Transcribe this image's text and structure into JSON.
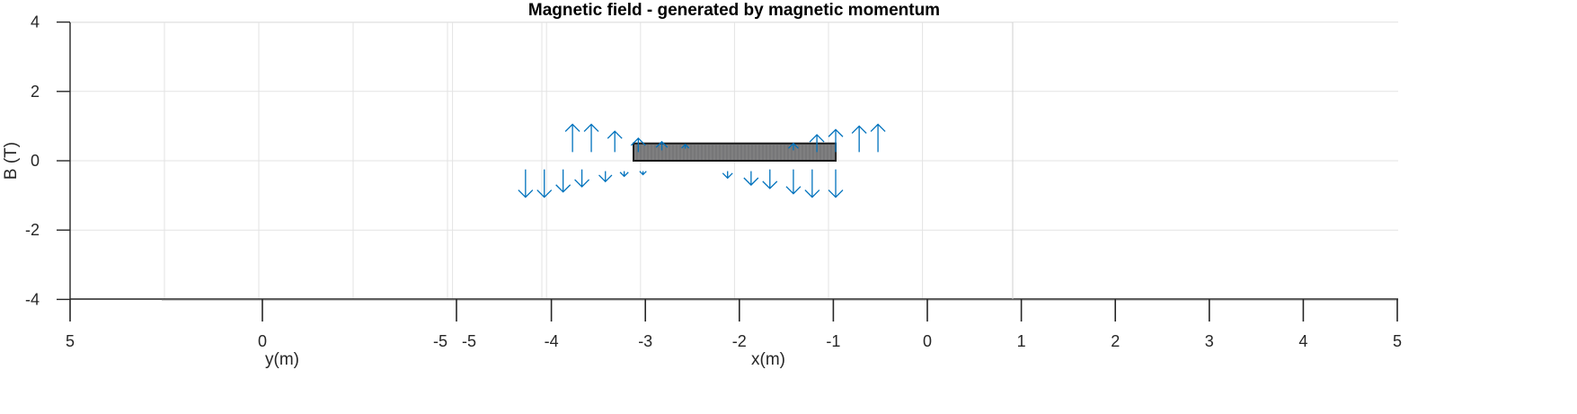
{
  "chart_data": {
    "type": "quiver",
    "title": "Magnetic field - generated by magnetic momentum",
    "ylabel": "B (T)",
    "y_labels": [
      "4",
      "2",
      "0",
      "-2",
      "-4"
    ],
    "ylim": [
      -4,
      4
    ],
    "xlabel": "x(m)",
    "xlim": [
      -5,
      5
    ],
    "x_labels": [
      "-4",
      "-3",
      "-2",
      "-1",
      "0",
      "1",
      "2",
      "3",
      "4",
      "5"
    ],
    "y_axis_label": "y(m)",
    "y_axis_tick_labels": [
      "5",
      "0",
      "-5",
      "-5"
    ],
    "grid": true,
    "magnet": {
      "x": [
        -3.1,
        -1.0
      ],
      "y": [
        0.0,
        0.5
      ]
    },
    "field_vectors": [
      {
        "x": -3.45,
        "y": 0.25,
        "dy": 0.8
      },
      {
        "x": -3.25,
        "y": 0.25,
        "dy": 0.8
      },
      {
        "x": -3.0,
        "y": 0.25,
        "dy": 0.6
      },
      {
        "x": -2.75,
        "y": 0.25,
        "dy": 0.4
      },
      {
        "x": -2.5,
        "y": 0.3,
        "dy": 0.25
      },
      {
        "x": -2.25,
        "y": 0.35,
        "dy": 0.12
      },
      {
        "x": -1.1,
        "y": 0.3,
        "dy": 0.2
      },
      {
        "x": -0.85,
        "y": 0.25,
        "dy": 0.5
      },
      {
        "x": -0.65,
        "y": 0.25,
        "dy": 0.65
      },
      {
        "x": -0.4,
        "y": 0.25,
        "dy": 0.75
      },
      {
        "x": -0.2,
        "y": 0.25,
        "dy": 0.8
      },
      {
        "x": -3.95,
        "y": -0.25,
        "dy": -0.8
      },
      {
        "x": -3.75,
        "y": -0.25,
        "dy": -0.8
      },
      {
        "x": -3.55,
        "y": -0.25,
        "dy": -0.65
      },
      {
        "x": -3.35,
        "y": -0.25,
        "dy": -0.5
      },
      {
        "x": -3.1,
        "y": -0.3,
        "dy": -0.3
      },
      {
        "x": -2.9,
        "y": -0.3,
        "dy": -0.15
      },
      {
        "x": -2.7,
        "y": -0.3,
        "dy": -0.1
      },
      {
        "x": -1.8,
        "y": -0.3,
        "dy": -0.2
      },
      {
        "x": -1.55,
        "y": -0.3,
        "dy": -0.4
      },
      {
        "x": -1.35,
        "y": -0.25,
        "dy": -0.55
      },
      {
        "x": -1.1,
        "y": -0.25,
        "dy": -0.7
      },
      {
        "x": -0.9,
        "y": -0.25,
        "dy": -0.8
      },
      {
        "x": -0.65,
        "y": -0.25,
        "dy": -0.8
      }
    ],
    "colors": {
      "arrow": "#0072BD",
      "magnet_fill": "#7f7f80",
      "grid": "#e3e3e3",
      "axis": "#262626"
    }
  }
}
